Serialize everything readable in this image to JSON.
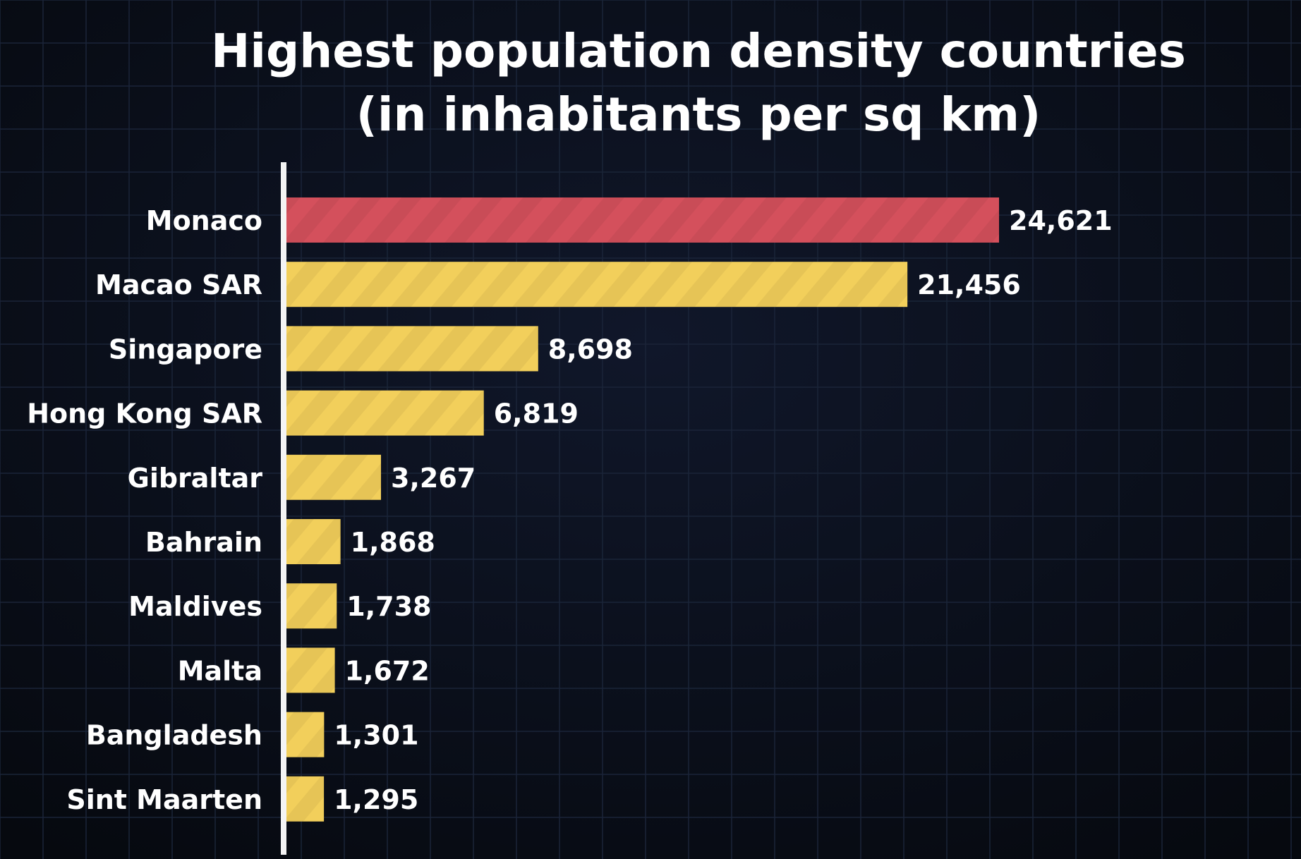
{
  "chart_data": {
    "type": "bar",
    "orientation": "horizontal",
    "title_lines": [
      "Highest population density countries",
      "(in inhabitants per sq km)"
    ],
    "categories": [
      "Monaco",
      "Macao SAR",
      "Singapore",
      "Hong Kong SAR",
      "Gibraltar",
      "Bahrain",
      "Maldives",
      "Malta",
      "Bangladesh",
      "Sint Maarten"
    ],
    "values": [
      24621,
      21456,
      8698,
      6819,
      3267,
      1868,
      1738,
      1672,
      1301,
      1295
    ],
    "value_labels": [
      "24,621",
      "21,456",
      "8,698",
      "6,819",
      "3,267",
      "1,868",
      "1,738",
      "1,672",
      "1,301",
      "1,295"
    ],
    "bar_colors": [
      "#d4505c",
      "#f2cf5b",
      "#f2cf5b",
      "#f2cf5b",
      "#f2cf5b",
      "#f2cf5b",
      "#f2cf5b",
      "#f2cf5b",
      "#f2cf5b",
      "#f2cf5b"
    ],
    "highlight_color": "#d4505c",
    "default_color": "#f2cf5b",
    "background_color": "#090d17",
    "grid": true,
    "legend": "none"
  }
}
